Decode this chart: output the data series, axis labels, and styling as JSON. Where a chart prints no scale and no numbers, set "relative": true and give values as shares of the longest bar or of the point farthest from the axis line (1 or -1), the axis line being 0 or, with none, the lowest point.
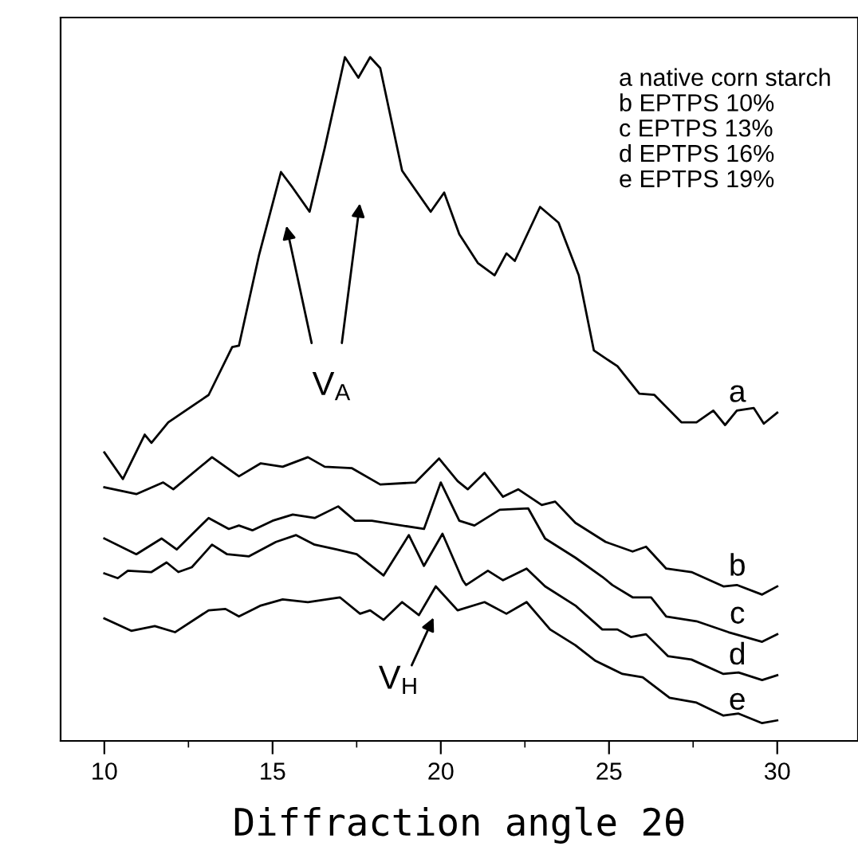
{
  "chart_data": {
    "type": "line",
    "relative": true,
    "xlabel": "Diffraction angle 2θ",
    "xlim": [
      8.7,
      32.4
    ],
    "xticks": [
      10,
      {
        "value": 12.5,
        "label": null
      },
      15,
      {
        "value": 17.5,
        "label": null
      },
      20,
      {
        "value": 22.5,
        "label": null
      },
      25,
      {
        "value": 27.5,
        "label": null
      },
      30
    ],
    "tick_labels": "x",
    "grid": false,
    "legend": false,
    "marker": "none",
    "line_style": "solid",
    "series": [
      {
        "name": "a",
        "color": "#000000",
        "x": [
          10,
          10.55,
          11.2,
          11.4,
          11.9,
          13.1,
          13.8,
          14.0,
          14.6,
          15.25,
          15.6,
          16.1,
          16.55,
          17.15,
          17.55,
          17.9,
          18.2,
          18.85,
          19.7,
          20.1,
          20.55,
          21.1,
          21.6,
          21.95,
          22.2,
          22.95,
          23.5,
          24.1,
          24.55,
          25.25,
          25.9,
          26.35,
          27.15,
          27.6,
          28.1,
          28.45,
          28.8,
          29.3,
          29.6,
          30
        ],
        "values": [
          0.422,
          0.383,
          0.448,
          0.436,
          0.466,
          0.506,
          0.576,
          0.578,
          0.711,
          0.832,
          0.809,
          0.774,
          0.867,
          1.0,
          0.97,
          1.0,
          0.984,
          0.834,
          0.774,
          0.802,
          0.741,
          0.699,
          0.681,
          0.713,
          0.702,
          0.781,
          0.758,
          0.681,
          0.571,
          0.548,
          0.508,
          0.506,
          0.466,
          0.466,
          0.483,
          0.462,
          0.483,
          0.487,
          0.464,
          0.48
        ]
      },
      {
        "name": "b",
        "color": "#000000",
        "x": [
          10,
          10.95,
          11.75,
          12.05,
          13.2,
          14.0,
          14.65,
          15.3,
          16.05,
          16.55,
          17.35,
          18.2,
          19.25,
          19.95,
          20.5,
          20.8,
          21.3,
          21.85,
          22.3,
          23.0,
          23.4,
          24.0,
          24.9,
          25.7,
          26.1,
          26.7,
          27.45,
          28.4,
          28.8,
          29.55,
          30
        ],
        "values": [
          0.371,
          0.361,
          0.378,
          0.368,
          0.415,
          0.387,
          0.406,
          0.401,
          0.415,
          0.401,
          0.399,
          0.375,
          0.378,
          0.413,
          0.38,
          0.368,
          0.392,
          0.357,
          0.368,
          0.345,
          0.35,
          0.319,
          0.291,
          0.277,
          0.284,
          0.252,
          0.247,
          0.226,
          0.228,
          0.214,
          0.226
        ]
      },
      {
        "name": "c",
        "color": "#000000",
        "x": [
          10,
          10.95,
          11.7,
          12.15,
          13.1,
          13.7,
          14.0,
          14.4,
          15.0,
          15.6,
          16.25,
          16.95,
          17.45,
          17.95,
          19.5,
          20.0,
          20.55,
          21.0,
          21.75,
          22.6,
          23.1,
          24.0,
          24.8,
          25.1,
          25.7,
          26.25,
          26.7,
          27.6,
          28.55,
          29.55,
          30
        ],
        "values": [
          0.296,
          0.273,
          0.296,
          0.28,
          0.326,
          0.31,
          0.315,
          0.308,
          0.322,
          0.331,
          0.326,
          0.343,
          0.322,
          0.322,
          0.31,
          0.378,
          0.322,
          0.315,
          0.338,
          0.34,
          0.296,
          0.268,
          0.24,
          0.228,
          0.21,
          0.21,
          0.182,
          0.175,
          0.159,
          0.145,
          0.156
        ]
      },
      {
        "name": "d",
        "color": "#000000",
        "x": [
          10,
          10.4,
          10.7,
          11.4,
          11.85,
          12.2,
          12.6,
          13.2,
          13.65,
          14.3,
          15.1,
          15.7,
          16.25,
          16.9,
          17.5,
          18.3,
          19.05,
          19.5,
          20.05,
          20.65,
          20.75,
          21.4,
          21.85,
          22.55,
          23.1,
          24.0,
          24.8,
          25.25,
          25.65,
          26.1,
          26.75,
          27.45,
          28.4,
          28.85,
          29.55,
          30
        ],
        "values": [
          0.245,
          0.238,
          0.249,
          0.247,
          0.261,
          0.247,
          0.254,
          0.287,
          0.273,
          0.27,
          0.291,
          0.301,
          0.287,
          0.28,
          0.273,
          0.242,
          0.301,
          0.256,
          0.303,
          0.235,
          0.228,
          0.249,
          0.235,
          0.252,
          0.226,
          0.198,
          0.163,
          0.163,
          0.152,
          0.156,
          0.124,
          0.119,
          0.098,
          0.1,
          0.089,
          0.096
        ]
      },
      {
        "name": "e",
        "color": "#000000",
        "x": [
          10,
          10.8,
          11.5,
          12.1,
          13.1,
          13.6,
          14.0,
          14.65,
          15.3,
          16.05,
          17.0,
          17.6,
          17.9,
          18.3,
          18.85,
          19.35,
          19.85,
          20.5,
          21.3,
          21.95,
          22.55,
          23.25,
          24.0,
          24.6,
          25.4,
          26.0,
          26.8,
          27.6,
          28.4,
          28.85,
          29.55,
          30
        ],
        "values": [
          0.179,
          0.161,
          0.168,
          0.159,
          0.191,
          0.193,
          0.182,
          0.198,
          0.207,
          0.203,
          0.21,
          0.186,
          0.191,
          0.177,
          0.203,
          0.184,
          0.226,
          0.191,
          0.203,
          0.186,
          0.203,
          0.163,
          0.14,
          0.117,
          0.098,
          0.093,
          0.063,
          0.056,
          0.037,
          0.04,
          0.026,
          0.03
        ]
      }
    ],
    "annotations": [
      "a native corn starch\nb EPTPS 10%\nc EPTPS 13%\nd EPTPS 16%\ne EPTPS 19%",
      "V$_{A}$",
      "V$_{H}$"
    ]
  }
}
